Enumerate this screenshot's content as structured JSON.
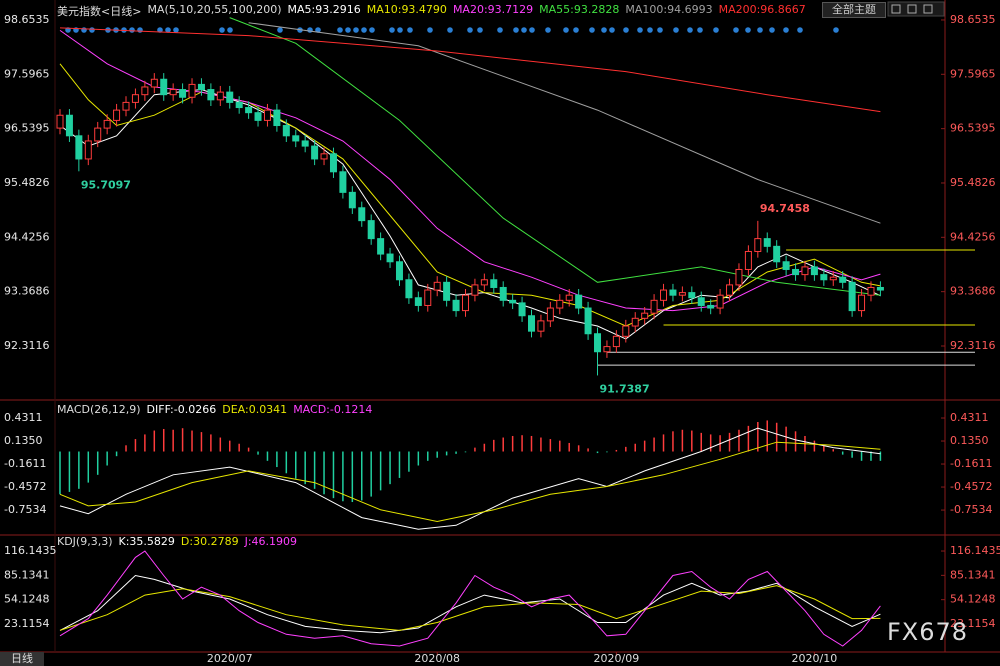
{
  "header": {
    "theme_button": "全部主题",
    "tab": "日线",
    "watermark": "FX678"
  },
  "chart_data": [
    {
      "type": "candlestick",
      "title": "美元指数<日线>",
      "subtitle": "MA(5,10,20,55,100,200)",
      "ylim": [
        91.3,
        98.75
      ],
      "yticks": [
        98.6535,
        97.5965,
        96.5395,
        95.4826,
        94.4256,
        93.3686,
        92.3116
      ],
      "up_color": "#ff3c3c",
      "down_color": "#20d0a0",
      "candles": [
        [
          96.55,
          96.92,
          96.43,
          96.8
        ],
        [
          96.8,
          96.92,
          96.28,
          96.4
        ],
        [
          96.4,
          96.52,
          95.7097,
          95.95
        ],
        [
          95.95,
          96.42,
          95.83,
          96.3
        ],
        [
          96.3,
          96.67,
          96.18,
          96.55
        ],
        [
          96.55,
          96.82,
          96.43,
          96.7
        ],
        [
          96.7,
          97.02,
          96.58,
          96.9
        ],
        [
          96.9,
          97.17,
          96.78,
          97.05
        ],
        [
          97.05,
          97.32,
          96.93,
          97.2
        ],
        [
          97.2,
          97.47,
          97.08,
          97.35
        ],
        [
          97.35,
          97.62,
          97.23,
          97.5
        ],
        [
          97.5,
          97.62,
          97.08,
          97.2
        ],
        [
          97.2,
          97.42,
          97.08,
          97.3
        ],
        [
          97.3,
          97.42,
          97.03,
          97.15
        ],
        [
          97.15,
          97.52,
          97.03,
          97.4
        ],
        [
          97.4,
          97.52,
          97.18,
          97.3
        ],
        [
          97.3,
          97.42,
          96.98,
          97.1
        ],
        [
          97.1,
          97.37,
          96.98,
          97.25
        ],
        [
          97.25,
          97.37,
          96.93,
          97.05
        ],
        [
          97.05,
          97.17,
          96.83,
          96.95
        ],
        [
          96.95,
          97.07,
          96.73,
          96.85
        ],
        [
          96.85,
          96.97,
          96.58,
          96.7
        ],
        [
          96.7,
          97.02,
          96.58,
          96.9
        ],
        [
          96.9,
          97.02,
          96.48,
          96.6
        ],
        [
          96.6,
          96.72,
          96.28,
          96.4
        ],
        [
          96.4,
          96.52,
          96.18,
          96.3
        ],
        [
          96.3,
          96.42,
          96.08,
          96.2
        ],
        [
          96.2,
          96.32,
          95.83,
          95.95
        ],
        [
          95.95,
          96.17,
          95.83,
          96.05
        ],
        [
          96.05,
          96.17,
          95.58,
          95.7
        ],
        [
          95.7,
          95.82,
          95.18,
          95.3
        ],
        [
          95.3,
          95.42,
          94.88,
          95.0
        ],
        [
          95.0,
          95.12,
          94.63,
          94.75
        ],
        [
          94.75,
          94.87,
          94.28,
          94.4
        ],
        [
          94.4,
          94.52,
          93.98,
          94.1
        ],
        [
          94.1,
          94.22,
          93.83,
          93.95
        ],
        [
          93.95,
          94.07,
          93.48,
          93.6
        ],
        [
          93.6,
          93.72,
          93.13,
          93.25
        ],
        [
          93.25,
          93.37,
          92.98,
          93.1
        ],
        [
          93.1,
          93.52,
          92.98,
          93.4
        ],
        [
          93.4,
          93.67,
          93.28,
          93.55
        ],
        [
          93.55,
          93.67,
          93.08,
          93.2
        ],
        [
          93.2,
          93.32,
          92.88,
          93.0
        ],
        [
          93.0,
          93.42,
          92.88,
          93.3
        ],
        [
          93.3,
          93.62,
          93.18,
          93.5
        ],
        [
          93.5,
          93.72,
          93.38,
          93.6
        ],
        [
          93.6,
          93.72,
          93.33,
          93.45
        ],
        [
          93.45,
          93.57,
          93.08,
          93.2
        ],
        [
          93.2,
          93.32,
          93.03,
          93.15
        ],
        [
          93.15,
          93.27,
          92.78,
          92.9
        ],
        [
          92.9,
          93.02,
          92.48,
          92.6
        ],
        [
          92.6,
          92.92,
          92.48,
          92.8
        ],
        [
          92.8,
          93.17,
          92.68,
          93.05
        ],
        [
          93.05,
          93.32,
          92.93,
          93.2
        ],
        [
          93.2,
          93.42,
          93.08,
          93.3
        ],
        [
          93.3,
          93.42,
          92.93,
          93.05
        ],
        [
          93.05,
          93.17,
          92.43,
          92.55
        ],
        [
          92.55,
          92.67,
          91.7387,
          92.2
        ],
        [
          92.2,
          92.42,
          92.08,
          92.3
        ],
        [
          92.3,
          92.62,
          92.18,
          92.5
        ],
        [
          92.5,
          92.82,
          92.38,
          92.7
        ],
        [
          92.7,
          92.97,
          92.58,
          92.85
        ],
        [
          92.85,
          93.07,
          92.73,
          92.95
        ],
        [
          92.95,
          93.32,
          92.83,
          93.2
        ],
        [
          93.2,
          93.52,
          93.08,
          93.4
        ],
        [
          93.4,
          93.52,
          93.18,
          93.3
        ],
        [
          93.3,
          93.47,
          93.18,
          93.35
        ],
        [
          93.35,
          93.47,
          93.13,
          93.25
        ],
        [
          93.25,
          93.37,
          92.98,
          93.1
        ],
        [
          93.1,
          93.22,
          92.93,
          93.05
        ],
        [
          93.05,
          93.42,
          92.93,
          93.3
        ],
        [
          93.3,
          93.62,
          93.18,
          93.5
        ],
        [
          93.5,
          93.92,
          93.38,
          93.8
        ],
        [
          93.8,
          94.27,
          93.68,
          94.15
        ],
        [
          94.15,
          94.7458,
          94.03,
          94.4
        ],
        [
          94.4,
          94.52,
          94.13,
          94.25
        ],
        [
          94.25,
          94.37,
          93.83,
          93.95
        ],
        [
          93.95,
          94.07,
          93.68,
          93.8
        ],
        [
          93.8,
          93.92,
          93.58,
          93.7
        ],
        [
          93.7,
          93.97,
          93.58,
          93.85
        ],
        [
          93.85,
          93.97,
          93.58,
          93.7
        ],
        [
          93.7,
          93.82,
          93.48,
          93.6
        ],
        [
          93.6,
          93.77,
          93.48,
          93.65
        ],
        [
          93.65,
          93.77,
          93.43,
          93.55
        ],
        [
          93.55,
          93.67,
          92.88,
          93.0
        ],
        [
          93.0,
          93.42,
          92.88,
          93.3
        ],
        [
          93.3,
          93.57,
          93.18,
          93.45
        ],
        [
          93.45,
          93.57,
          93.28,
          93.4
        ]
      ],
      "levels": [
        {
          "value": 94.18,
          "start": 77,
          "color": "#e6e600"
        },
        {
          "value": 92.72,
          "start": 64,
          "color": "#e6e600"
        },
        {
          "value": 92.19,
          "start": 58,
          "color": "#dddddd"
        },
        {
          "value": 91.94,
          "start": 57,
          "color": "#dddddd"
        }
      ],
      "series": [
        {
          "name": "MA5:93.2916",
          "color": "#ffffff",
          "x": [
            0,
            3,
            6,
            10,
            15,
            20,
            25,
            30,
            35,
            38,
            42,
            45,
            50,
            53,
            57,
            60,
            64,
            68,
            71,
            74,
            77,
            80,
            84,
            87
          ],
          "values": [
            96.6,
            96.2,
            96.4,
            97.2,
            97.3,
            97.0,
            96.55,
            95.85,
            94.45,
            93.5,
            93.3,
            93.35,
            93.05,
            92.85,
            92.7,
            92.45,
            93.0,
            93.3,
            93.25,
            93.85,
            94.1,
            93.85,
            93.55,
            93.29
          ]
        },
        {
          "name": "MA10:93.4790",
          "color": "#e6e600",
          "x": [
            0,
            3,
            6,
            10,
            15,
            20,
            25,
            30,
            35,
            40,
            45,
            50,
            55,
            60,
            65,
            70,
            75,
            80,
            85,
            87
          ],
          "values": [
            97.8,
            97.1,
            96.6,
            96.8,
            97.25,
            97.05,
            96.55,
            95.95,
            94.85,
            93.75,
            93.35,
            93.3,
            93.1,
            92.7,
            93.1,
            93.2,
            93.75,
            94.0,
            93.55,
            93.48
          ]
        },
        {
          "name": "MA20:93.7129",
          "color": "#ff40ff",
          "x": [
            0,
            5,
            10,
            15,
            20,
            25,
            30,
            35,
            40,
            45,
            50,
            55,
            60,
            65,
            70,
            75,
            80,
            85,
            87
          ],
          "values": [
            98.45,
            97.8,
            97.35,
            97.25,
            97.05,
            96.75,
            96.3,
            95.55,
            94.6,
            93.95,
            93.65,
            93.3,
            93.05,
            93.0,
            93.1,
            93.55,
            93.85,
            93.6,
            93.71
          ]
        },
        {
          "name": "MA55:93.2828",
          "color": "#40e040",
          "x": [
            18,
            25,
            36,
            47,
            57,
            68,
            76,
            87
          ],
          "values": [
            98.7,
            98.2,
            96.7,
            94.8,
            93.55,
            93.85,
            93.55,
            93.3
          ]
        },
        {
          "name": "MA100:94.6993",
          "color": "#a0a0a0",
          "x": [
            20,
            38,
            57,
            74,
            87
          ],
          "values": [
            98.6,
            98.15,
            96.9,
            95.55,
            94.7
          ]
        },
        {
          "name": "MA200:96.8667",
          "color": "#ff3030",
          "x": [
            0,
            20,
            40,
            60,
            75,
            87
          ],
          "values": [
            98.5,
            98.35,
            98.05,
            97.65,
            97.2,
            96.87
          ]
        }
      ]
    },
    {
      "type": "macd",
      "title": "MACD(26,12,9)",
      "histogram_label": "MACD:-0.1214",
      "ylim": [
        -1.01,
        0.56
      ],
      "yticks": [
        0.4311,
        {
          "value": 0.135,
          "label": "0.1350"
        },
        -0.1611,
        -0.4572,
        -0.7534
      ],
      "up_color": "#ff3c3c",
      "down_color": "#20d0a0",
      "histogram": [
        -0.55,
        -0.52,
        -0.48,
        -0.4,
        -0.3,
        -0.18,
        -0.06,
        0.08,
        0.16,
        0.22,
        0.27,
        0.29,
        0.28,
        0.3,
        0.27,
        0.25,
        0.22,
        0.18,
        0.14,
        0.1,
        0.05,
        -0.04,
        -0.12,
        -0.2,
        -0.28,
        -0.35,
        -0.42,
        -0.48,
        -0.55,
        -0.6,
        -0.64,
        -0.65,
        -0.63,
        -0.58,
        -0.5,
        -0.42,
        -0.34,
        -0.26,
        -0.18,
        -0.12,
        -0.08,
        -0.05,
        -0.03,
        -0.01,
        0.05,
        0.1,
        0.15,
        0.18,
        0.2,
        0.21,
        0.2,
        0.18,
        0.16,
        0.14,
        0.11,
        0.08,
        0.04,
        -0.02,
        -0.01,
        0.02,
        0.06,
        0.1,
        0.14,
        0.18,
        0.22,
        0.26,
        0.28,
        0.27,
        0.24,
        0.22,
        0.21,
        0.24,
        0.28,
        0.33,
        0.38,
        0.4,
        0.37,
        0.32,
        0.26,
        0.2,
        0.14,
        0.08,
        0.03,
        -0.04,
        -0.08,
        -0.12,
        -0.12,
        -0.12
      ],
      "series": [
        {
          "name": "DIFF:-0.0266",
          "color": "#ffffff",
          "x": [
            0,
            3,
            7,
            12,
            18,
            25,
            32,
            38,
            42,
            48,
            55,
            58,
            62,
            68,
            74,
            78,
            82,
            87
          ],
          "values": [
            -0.7,
            -0.8,
            -0.55,
            -0.3,
            -0.2,
            -0.4,
            -0.85,
            -1.0,
            -0.95,
            -0.6,
            -0.35,
            -0.45,
            -0.25,
            0.0,
            0.3,
            0.15,
            0.05,
            -0.03
          ]
        },
        {
          "name": "DEA:0.0341",
          "color": "#e6e600",
          "x": [
            0,
            3,
            8,
            14,
            20,
            27,
            34,
            40,
            46,
            52,
            58,
            64,
            70,
            76,
            82,
            87
          ],
          "values": [
            -0.55,
            -0.7,
            -0.65,
            -0.4,
            -0.25,
            -0.4,
            -0.75,
            -0.9,
            -0.75,
            -0.55,
            -0.45,
            -0.3,
            -0.1,
            0.12,
            0.08,
            0.03
          ]
        }
      ]
    },
    {
      "type": "kdj",
      "title": "KDJ(9,3,3)",
      "ylim": [
        -12.6,
        130.2
      ],
      "yticks": [
        116.1435,
        85.1341,
        54.1248,
        23.1154
      ],
      "xticks": [
        {
          "value": 18,
          "label": "2020/07"
        },
        {
          "value": 40,
          "label": "2020/08"
        },
        {
          "value": 59,
          "label": "2020/09"
        },
        {
          "value": 80,
          "label": "2020/10"
        }
      ],
      "series": [
        {
          "name": "K:35.5829",
          "color": "#ffffff",
          "x": [
            0,
            4,
            8,
            10,
            14,
            18,
            22,
            26,
            30,
            34,
            38,
            42,
            45,
            49,
            53,
            57,
            60,
            64,
            67,
            70,
            73,
            76,
            80,
            84,
            87
          ],
          "values": [
            15,
            40,
            85,
            80,
            65,
            55,
            35,
            20,
            15,
            12,
            18,
            45,
            60,
            50,
            55,
            25,
            25,
            60,
            75,
            60,
            65,
            75,
            45,
            20,
            35.58
          ]
        },
        {
          "name": "D:30.2789",
          "color": "#e6e600",
          "x": [
            0,
            5,
            9,
            13,
            18,
            24,
            30,
            36,
            40,
            45,
            50,
            55,
            59,
            63,
            68,
            72,
            76,
            80,
            84,
            87
          ],
          "values": [
            15,
            35,
            60,
            68,
            58,
            35,
            22,
            15,
            25,
            45,
            50,
            48,
            30,
            45,
            65,
            62,
            72,
            55,
            30,
            30.28
          ]
        },
        {
          "name": "J:46.1909",
          "color": "#ff40ff",
          "x": [
            0,
            3,
            5,
            8,
            9,
            11,
            13,
            15,
            17,
            19,
            21,
            24,
            27,
            30,
            33,
            36,
            39,
            42,
            44,
            46,
            48,
            50,
            52,
            54,
            56,
            58,
            60,
            62,
            65,
            67,
            69,
            71,
            73,
            75,
            77,
            79,
            81,
            83,
            85,
            87
          ],
          "values": [
            8,
            30,
            60,
            108,
            116,
            85,
            55,
            70,
            60,
            40,
            25,
            10,
            5,
            8,
            -2,
            -5,
            5,
            50,
            85,
            70,
            60,
            45,
            55,
            60,
            35,
            8,
            10,
            40,
            85,
            90,
            70,
            55,
            80,
            90,
            65,
            40,
            10,
            -5,
            15,
            46.19
          ]
        }
      ]
    }
  ]
}
